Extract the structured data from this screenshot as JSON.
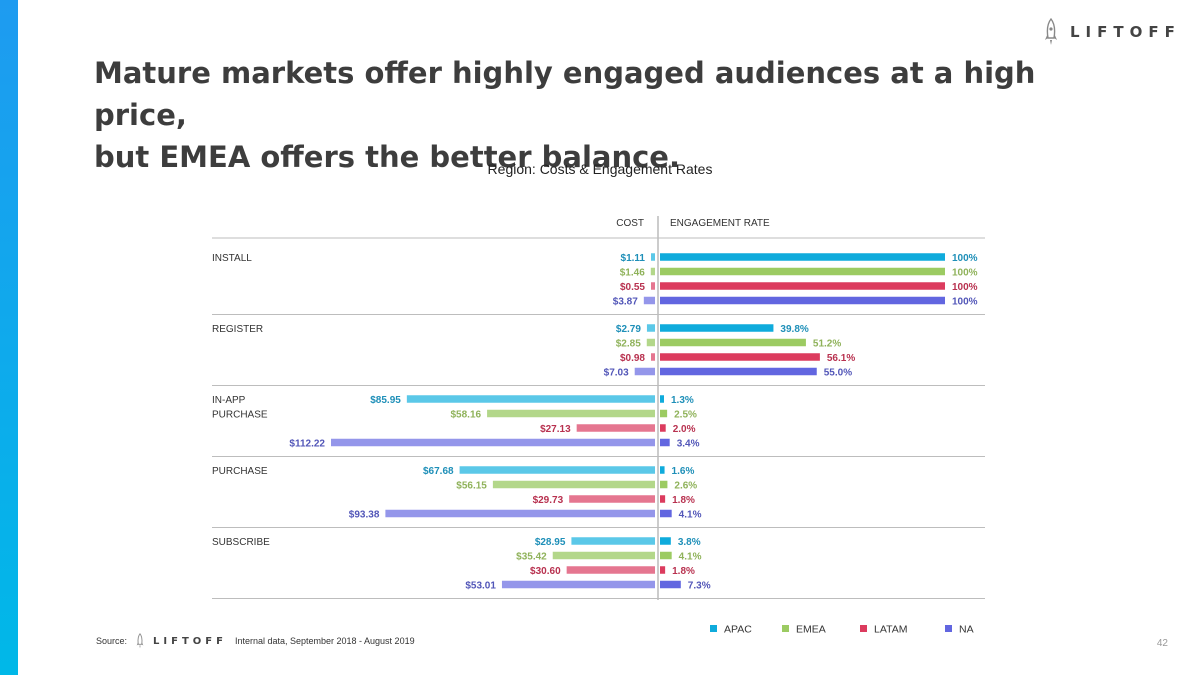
{
  "brand": {
    "name": "LIFTOFF",
    "accent_color": "#1e9bf0"
  },
  "headline": {
    "line1": "Mature markets offer highly engaged audiences at a high price,",
    "line2": "but EMEA offers the better balance."
  },
  "footer": {
    "source_label": "Source:",
    "source_text": "Internal data, September 2018 - August 2019",
    "page_number": "42"
  },
  "chart_data": {
    "type": "bar",
    "orientation": "horizontal-butterfly",
    "title": "Region: Costs & Engagement Rates",
    "left_axis_label": "COST",
    "right_axis_label": "ENGAGEMENT RATE",
    "cost_max": 112.22,
    "engagement_max": 100,
    "categories": [
      {
        "label_lines": [
          "INSTALL"
        ]
      },
      {
        "label_lines": [
          "REGISTER"
        ]
      },
      {
        "label_lines": [
          "IN-APP",
          "PURCHASE"
        ]
      },
      {
        "label_lines": [
          "PURCHASE"
        ]
      },
      {
        "label_lines": [
          "SUBSCRIBE"
        ]
      }
    ],
    "series": [
      {
        "name": "APAC",
        "color": "#0fabdc",
        "cost_color": "#5bc8e8",
        "label_color": "#1e8fb8",
        "cost": [
          1.11,
          2.79,
          85.95,
          67.68,
          28.95
        ],
        "cost_labels": [
          "$1.11",
          "$2.79",
          "$85.95",
          "$67.68",
          "$28.95"
        ],
        "engagement": [
          100,
          39.8,
          1.3,
          1.6,
          3.8
        ],
        "engagement_labels": [
          "100%",
          "39.8%",
          "1.3%",
          "1.6%",
          "3.8%"
        ]
      },
      {
        "name": "EMEA",
        "color": "#9ccb62",
        "cost_color": "#b3d78a",
        "label_color": "#8fb25a",
        "cost": [
          1.46,
          2.85,
          58.16,
          56.15,
          35.42
        ],
        "cost_labels": [
          "$1.46",
          "$2.85",
          "$58.16",
          "$56.15",
          "$35.42"
        ],
        "engagement": [
          100,
          51.2,
          2.5,
          2.6,
          4.1
        ],
        "engagement_labels": [
          "100%",
          "51.2%",
          "2.5%",
          "2.6%",
          "4.1%"
        ]
      },
      {
        "name": "LATAM",
        "color": "#dc3b5e",
        "cost_color": "#e57690",
        "label_color": "#b8314f",
        "cost": [
          0.55,
          0.98,
          27.13,
          29.73,
          30.6
        ],
        "cost_labels": [
          "$0.55",
          "$0.98",
          "$27.13",
          "$29.73",
          "$30.60"
        ],
        "engagement": [
          100,
          56.1,
          2.0,
          1.8,
          1.8
        ],
        "engagement_labels": [
          "100%",
          "56.1%",
          "2.0%",
          "1.8%",
          "1.8%"
        ]
      },
      {
        "name": "NA",
        "color": "#6266e0",
        "cost_color": "#9496ea",
        "label_color": "#5256b8",
        "cost": [
          3.87,
          7.03,
          112.22,
          93.38,
          53.01
        ],
        "cost_labels": [
          "$3.87",
          "$7.03",
          "$112.22",
          "$93.38",
          "$53.01"
        ],
        "engagement": [
          100,
          55.0,
          3.4,
          4.1,
          7.3
        ],
        "engagement_labels": [
          "100%",
          "55.0%",
          "3.4%",
          "4.1%",
          "7.3%"
        ]
      }
    ]
  }
}
